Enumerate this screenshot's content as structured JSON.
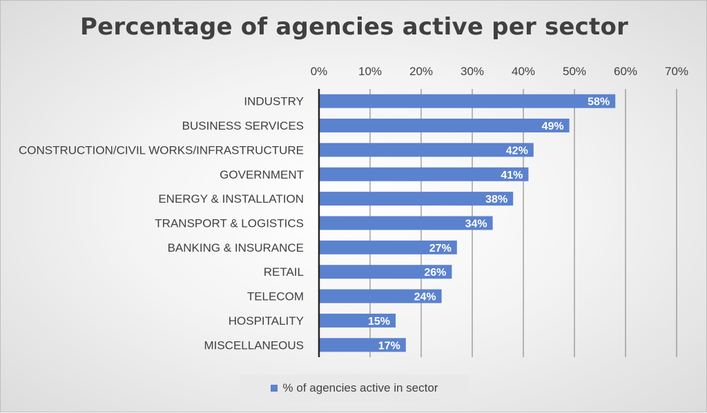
{
  "chart_data": {
    "type": "bar",
    "orientation": "horizontal",
    "title": "Percentage of agencies active per sector",
    "categories": [
      "INDUSTRY",
      "BUSINESS SERVICES",
      "CONSTRUCTION/CIVIL WORKS/INFRASTRUCTURE",
      "GOVERNMENT",
      "ENERGY & INSTALLATION",
      "TRANSPORT & LOGISTICS",
      "BANKING & INSURANCE",
      "RETAIL",
      "TELECOM",
      "HOSPITALITY",
      "MISCELLANEOUS"
    ],
    "series": [
      {
        "name": "% of agencies active in sector",
        "values": [
          58,
          49,
          42,
          41,
          38,
          34,
          27,
          26,
          24,
          15,
          17
        ],
        "color": "#5B82CE"
      }
    ],
    "data_labels": [
      "58%",
      "49%",
      "42%",
      "41%",
      "38%",
      "34%",
      "27%",
      "26%",
      "24%",
      "15%",
      "17%"
    ],
    "x_ticks": [
      "0%",
      "10%",
      "20%",
      "30%",
      "40%",
      "50%",
      "60%",
      "70%"
    ],
    "xlim": [
      0,
      70
    ],
    "x_axis_position": "top",
    "grid": true,
    "legend_position": "bottom"
  }
}
